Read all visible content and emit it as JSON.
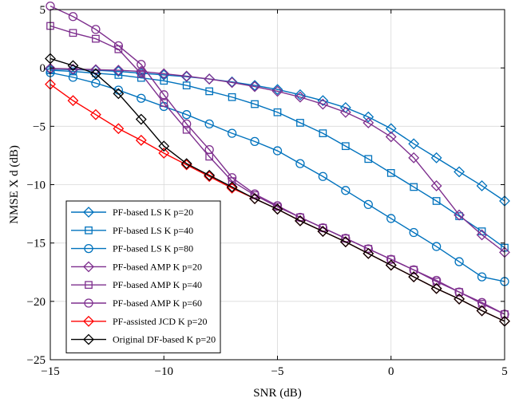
{
  "chart_data": {
    "type": "line",
    "title": "",
    "xlabel": "SNR (dB)",
    "ylabel": "NMSE  X d (dB)",
    "xlim": [
      -15,
      5
    ],
    "ylim": [
      -25,
      5
    ],
    "xticks": [
      -15,
      -10,
      -5,
      0,
      5
    ],
    "yticks": [
      5,
      0,
      -5,
      -10,
      -15,
      -20,
      -25
    ],
    "grid": true,
    "legend_position": "bottom-left",
    "x": [
      -15,
      -14,
      -13,
      -12,
      -11,
      -10,
      -9,
      -8,
      -7,
      -6,
      -5,
      -4,
      -3,
      -2,
      -1,
      0,
      1,
      2,
      3,
      4,
      5
    ],
    "series": [
      {
        "name": "PF-based LS  K p=20",
        "color": "#0072BD",
        "marker": "diamond",
        "values": [
          -0.1,
          -0.15,
          -0.2,
          -0.3,
          -0.45,
          -0.6,
          -0.75,
          -0.95,
          -1.2,
          -1.5,
          -1.85,
          -2.3,
          -2.8,
          -3.4,
          -4.2,
          -5.2,
          -6.5,
          -7.7,
          -8.9,
          -10.1,
          -11.4
        ]
      },
      {
        "name": "PF-based LS  K p=40",
        "color": "#0072BD",
        "marker": "square",
        "values": [
          -0.2,
          -0.3,
          -0.45,
          -0.6,
          -0.85,
          -1.1,
          -1.5,
          -2.0,
          -2.5,
          -3.1,
          -3.8,
          -4.7,
          -5.6,
          -6.7,
          -7.8,
          -9.0,
          -10.2,
          -11.4,
          -12.7,
          -14.0,
          -15.4
        ]
      },
      {
        "name": "PF-based LS  K p=80",
        "color": "#0072BD",
        "marker": "circle",
        "values": [
          -0.4,
          -0.8,
          -1.3,
          -1.9,
          -2.6,
          -3.3,
          -4.0,
          -4.8,
          -5.6,
          -6.3,
          -7.1,
          -8.2,
          -9.3,
          -10.5,
          -11.7,
          -12.9,
          -14.1,
          -15.3,
          -16.6,
          -17.9,
          -18.3
        ]
      },
      {
        "name": "PF-based AMP  K p=20",
        "color": "#7E2F8E",
        "marker": "diamond",
        "values": [
          -0.05,
          -0.1,
          -0.15,
          -0.2,
          -0.3,
          -0.5,
          -0.7,
          -0.95,
          -1.25,
          -1.6,
          -2.0,
          -2.5,
          -3.1,
          -3.8,
          -4.7,
          -5.9,
          -7.7,
          -10.1,
          -12.6,
          -14.3,
          -15.8
        ]
      },
      {
        "name": "PF-based AMP  K p=40",
        "color": "#7E2F8E",
        "marker": "square",
        "values": [
          3.6,
          3.0,
          2.5,
          1.6,
          -0.5,
          -3.0,
          -5.3,
          -7.6,
          -9.7,
          -10.9,
          -11.9,
          -12.8,
          -13.7,
          -14.6,
          -15.5,
          -16.4,
          -17.3,
          -18.3,
          -19.2,
          -20.2,
          -21.1
        ]
      },
      {
        "name": "PF-based AMP  K p=60",
        "color": "#7E2F8E",
        "marker": "circle",
        "values": [
          5.3,
          4.4,
          3.3,
          1.9,
          0.3,
          -2.3,
          -4.8,
          -7.0,
          -9.4,
          -10.8,
          -11.8,
          -12.8,
          -13.7,
          -14.6,
          -15.5,
          -16.4,
          -17.3,
          -18.2,
          -19.2,
          -20.1,
          -21.1
        ]
      },
      {
        "name": "PF-assisted JCD  K p=20",
        "color": "#FF0000",
        "marker": "diamond",
        "values": [
          -1.4,
          -2.8,
          -4.0,
          -5.2,
          -6.2,
          -7.3,
          -8.3,
          -9.3,
          -10.3,
          -11.2,
          -12.1,
          -13.1,
          -14.0,
          -14.9,
          -15.9,
          -16.9,
          -17.9,
          -18.9,
          -19.8,
          -20.8,
          -21.7
        ]
      },
      {
        "name": "Original DF-based  K p=20",
        "color": "#000000",
        "marker": "diamond",
        "values": [
          0.8,
          0.2,
          -0.5,
          -2.2,
          -4.4,
          -6.7,
          -8.2,
          -9.2,
          -10.2,
          -11.2,
          -12.1,
          -13.1,
          -14.0,
          -14.9,
          -15.9,
          -16.9,
          -17.9,
          -18.9,
          -19.8,
          -20.8,
          -21.7
        ]
      }
    ]
  }
}
